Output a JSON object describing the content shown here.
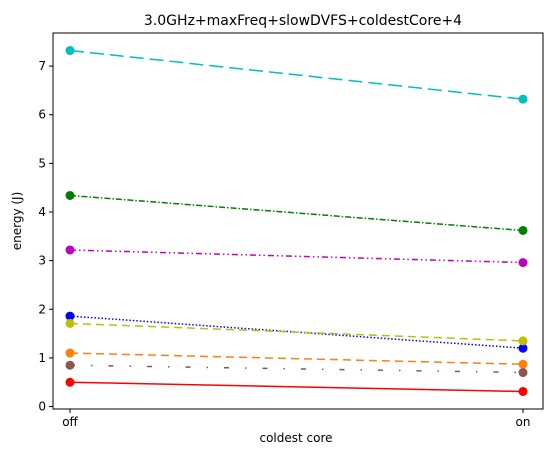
{
  "chart_data": {
    "type": "line",
    "title": "3.0GHz+maxFreq+slowDVFS+coldestCore+4",
    "xlabel": "coldest core",
    "ylabel": "energy (J)",
    "categories": [
      "off",
      "on"
    ],
    "ylim": [
      -0.05,
      7.68
    ],
    "yticks": [
      0,
      1,
      2,
      3,
      4,
      5,
      6,
      7
    ],
    "grid": false,
    "series": [
      {
        "values": [
          7.32,
          6.32
        ],
        "color": "#00bfbf",
        "dash": "long-dash"
      },
      {
        "values": [
          4.34,
          3.62
        ],
        "color": "#008000",
        "dash": "dash-dot"
      },
      {
        "values": [
          3.22,
          2.96
        ],
        "color": "#bf00bf",
        "dash": "dash-dot-dot"
      },
      {
        "values": [
          1.86,
          1.2
        ],
        "color": "#0000ff",
        "dash": "dotted"
      },
      {
        "values": [
          1.71,
          1.35
        ],
        "color": "#bfbf00",
        "dash": "dashed"
      },
      {
        "values": [
          1.1,
          0.87
        ],
        "color": "#ff7f0e",
        "dash": "dashed"
      },
      {
        "values": [
          0.85,
          0.7
        ],
        "color": "#8c564b",
        "dash": "sparse-dash-dot"
      },
      {
        "values": [
          0.5,
          0.31
        ],
        "color": "#ff0000",
        "dash": "solid"
      }
    ]
  }
}
